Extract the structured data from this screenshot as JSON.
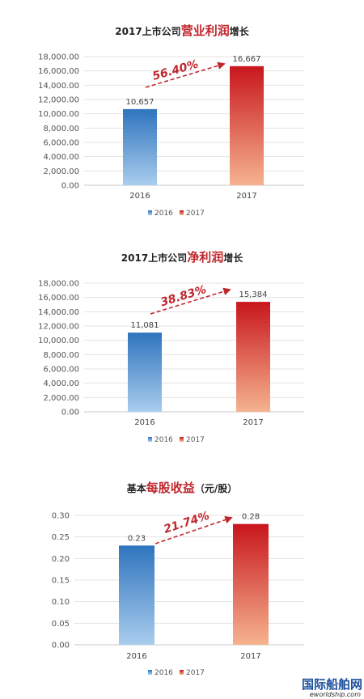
{
  "accent": "#c0272d",
  "watermark": {
    "logo": "国际船舶网",
    "url": "eworldship.com"
  },
  "chart_data": [
    {
      "type": "bar",
      "title_prefix": "2017上市公司",
      "title_highlight": "营业利润",
      "title_suffix": "增长",
      "categories": [
        "2016",
        "2017"
      ],
      "values": [
        10657,
        16667
      ],
      "value_labels": [
        "10,657",
        "16,667"
      ],
      "growth_label": "56.40%",
      "ylim": [
        0,
        18000
      ],
      "yticks": [
        0,
        2000,
        4000,
        6000,
        8000,
        10000,
        12000,
        14000,
        16000,
        18000
      ],
      "ytick_labels": [
        "0.00",
        "2,000.00",
        "4,000.00",
        "6,000.00",
        "8,000.00",
        "10,000.00",
        "12,000.00",
        "14,000.00",
        "16,000.00",
        "18,000.00"
      ],
      "legend": [
        "2016",
        "2017"
      ],
      "legend_position": "bottom",
      "grid": true,
      "colors": [
        "#3a7fc4",
        "#c8161d"
      ]
    },
    {
      "type": "bar",
      "title_prefix": "2017上市公司",
      "title_highlight": "净利润",
      "title_suffix": "增长",
      "categories": [
        "2016",
        "2017"
      ],
      "values": [
        11081,
        15384
      ],
      "value_labels": [
        "11,081",
        "15,384"
      ],
      "growth_label": "38.83%",
      "ylim": [
        0,
        18000
      ],
      "yticks": [
        0,
        2000,
        4000,
        6000,
        8000,
        10000,
        12000,
        14000,
        16000,
        18000
      ],
      "ytick_labels": [
        "0.00",
        "2,000.00",
        "4,000.00",
        "6,000.00",
        "8,000.00",
        "10,000.00",
        "12,000.00",
        "14,000.00",
        "16,000.00",
        "18,000.00"
      ],
      "legend": [
        "2016",
        "2017"
      ],
      "legend_position": "bottom",
      "grid": true,
      "colors": [
        "#3a7fc4",
        "#c8161d"
      ]
    },
    {
      "type": "bar",
      "title_prefix": "基本",
      "title_highlight": "每股收益",
      "title_suffix": "（元/股）",
      "categories": [
        "2016",
        "2017"
      ],
      "values": [
        0.23,
        0.28
      ],
      "value_labels": [
        "0.23",
        "0.28"
      ],
      "growth_label": "21.74%",
      "ylim": [
        0,
        0.3
      ],
      "yticks": [
        0,
        0.05,
        0.1,
        0.15,
        0.2,
        0.25,
        0.3
      ],
      "ytick_labels": [
        "0.00",
        "0.05",
        "0.10",
        "0.15",
        "0.20",
        "0.25",
        "0.30"
      ],
      "legend": [
        "2016",
        "2017"
      ],
      "legend_position": "bottom",
      "grid": true,
      "colors": [
        "#3a7fc4",
        "#c8161d"
      ]
    }
  ]
}
